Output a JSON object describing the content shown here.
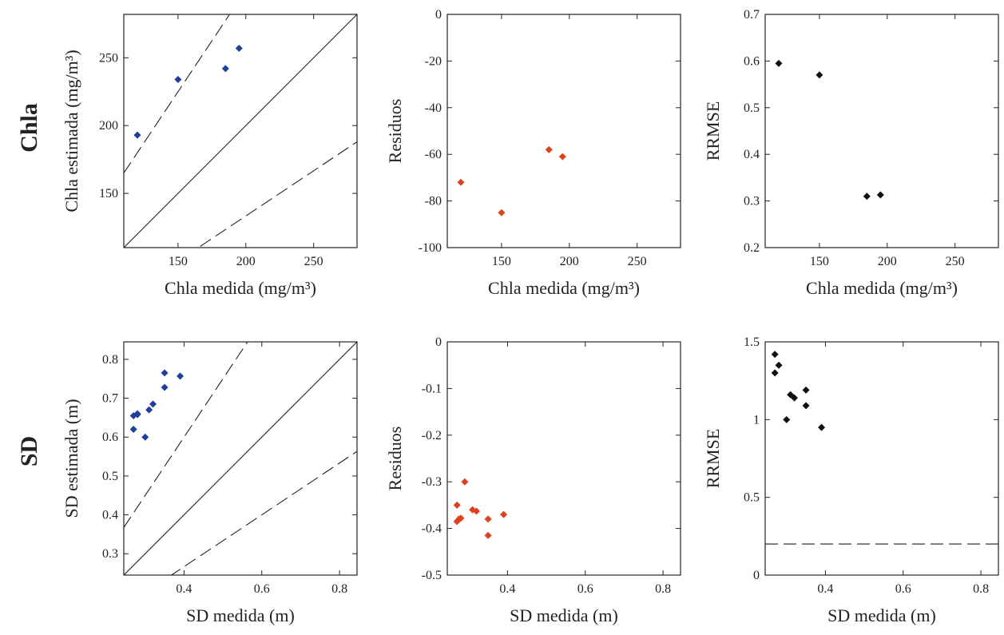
{
  "row_labels": [
    "Chla",
    "SD"
  ],
  "colors": {
    "estimated": "#1f3f9a",
    "residual": "#e0401c",
    "rrmse": "#111111"
  },
  "chart_data": [
    {
      "type": "scatter",
      "row": 0,
      "col": 0,
      "xlabel": "Chla medida (mg/m³)",
      "ylabel": "Chla estimada (mg/m³)",
      "xlim": [
        110,
        282
      ],
      "ylim": [
        110,
        282
      ],
      "xticks": [
        150,
        200,
        250
      ],
      "yticks": [
        150,
        200,
        250
      ],
      "x": [
        120,
        150,
        185,
        195
      ],
      "y": [
        193,
        234,
        242,
        257
      ],
      "color": "estimated",
      "ref_lines": [
        {
          "slope": 1,
          "style": "solid"
        },
        {
          "slope": 1.5,
          "style": "dashed"
        },
        {
          "slope": 0.666667,
          "style": "dashed"
        }
      ]
    },
    {
      "type": "scatter",
      "row": 0,
      "col": 1,
      "xlabel": "Chla medida (mg/m³)",
      "ylabel": "Residuos",
      "xlim": [
        110,
        282
      ],
      "ylim": [
        -100,
        0
      ],
      "xticks": [
        150,
        200,
        250
      ],
      "yticks": [
        -100,
        -80,
        -60,
        -40,
        -20,
        0
      ],
      "x": [
        120,
        150,
        185,
        195
      ],
      "y": [
        -72,
        -85,
        -58,
        -61
      ],
      "color": "residual"
    },
    {
      "type": "scatter",
      "row": 0,
      "col": 2,
      "xlabel": "Chla medida (mg/m³)",
      "ylabel": "RRMSE",
      "xlim": [
        110,
        282
      ],
      "ylim": [
        0.2,
        0.7
      ],
      "xticks": [
        150,
        200,
        250
      ],
      "yticks": [
        0.2,
        0.3,
        0.4,
        0.5,
        0.6,
        0.7
      ],
      "x": [
        120,
        150,
        185,
        195
      ],
      "y": [
        0.595,
        0.57,
        0.31,
        0.313
      ],
      "color": "rrmse"
    },
    {
      "type": "scatter",
      "row": 1,
      "col": 0,
      "xlabel": "SD medida (m)",
      "ylabel": "SD estimada (m)",
      "xlim": [
        0.245,
        0.845
      ],
      "ylim": [
        0.245,
        0.845
      ],
      "xticks": [
        0.4,
        0.6,
        0.8
      ],
      "yticks": [
        0.3,
        0.4,
        0.5,
        0.6,
        0.7,
        0.8
      ],
      "x": [
        0.27,
        0.27,
        0.28,
        0.28,
        0.3,
        0.31,
        0.32,
        0.35,
        0.35,
        0.39
      ],
      "y": [
        0.62,
        0.655,
        0.66,
        0.658,
        0.6,
        0.67,
        0.685,
        0.765,
        0.728,
        0.757
      ],
      "color": "estimated",
      "ref_lines": [
        {
          "slope": 1,
          "style": "solid"
        },
        {
          "slope": 1.5,
          "style": "dashed"
        },
        {
          "slope": 0.666667,
          "style": "dashed"
        }
      ]
    },
    {
      "type": "scatter",
      "row": 1,
      "col": 1,
      "xlabel": "SD medida (m)",
      "ylabel": "Residuos",
      "xlim": [
        0.245,
        0.845
      ],
      "ylim": [
        -0.5,
        0
      ],
      "xticks": [
        0.4,
        0.6,
        0.8
      ],
      "yticks": [
        -0.5,
        -0.4,
        -0.3,
        -0.2,
        -0.1,
        0
      ],
      "x": [
        0.27,
        0.27,
        0.275,
        0.28,
        0.29,
        0.31,
        0.32,
        0.35,
        0.35,
        0.39
      ],
      "y": [
        -0.35,
        -0.385,
        -0.38,
        -0.378,
        -0.3,
        -0.36,
        -0.363,
        -0.38,
        -0.415,
        -0.37
      ],
      "color": "residual"
    },
    {
      "type": "scatter",
      "row": 1,
      "col": 2,
      "xlabel": "SD medida (m)",
      "ylabel": "RRMSE",
      "xlim": [
        0.245,
        0.845
      ],
      "ylim": [
        0,
        1.5
      ],
      "xticks": [
        0.4,
        0.6,
        0.8
      ],
      "yticks": [
        0,
        0.5,
        1,
        1.5
      ],
      "x": [
        0.27,
        0.27,
        0.28,
        0.3,
        0.31,
        0.32,
        0.35,
        0.35,
        0.39
      ],
      "y": [
        1.42,
        1.3,
        1.35,
        1.0,
        1.16,
        1.14,
        1.19,
        1.09,
        0.95
      ],
      "color": "rrmse",
      "hline": {
        "y": 0.2,
        "style": "dashed"
      }
    }
  ]
}
